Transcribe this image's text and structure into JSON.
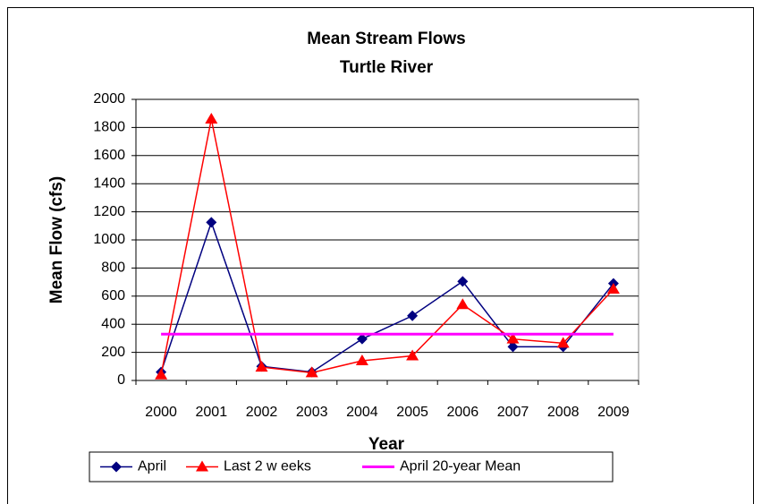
{
  "chart_data": {
    "type": "line",
    "title": "Mean Stream Flows",
    "subtitle": "Turtle River",
    "x_label": "Year",
    "y_label": "Mean Flow (cfs)",
    "categories": [
      "2000",
      "2001",
      "2002",
      "2003",
      "2004",
      "2005",
      "2006",
      "2007",
      "2008",
      "2009"
    ],
    "series": [
      {
        "name": "April",
        "color": "#000080",
        "marker": "diamond",
        "values": [
          60,
          1125,
          100,
          60,
          295,
          460,
          705,
          240,
          240,
          690
        ]
      },
      {
        "name": "Last 2 w eeks",
        "color": "#ff0000",
        "marker": "triangle",
        "values": [
          40,
          1860,
          95,
          55,
          140,
          175,
          540,
          295,
          265,
          650
        ]
      },
      {
        "name": "April 20-year Mean",
        "color": "#ff00ff",
        "marker": "none",
        "values": [
          330,
          330,
          330,
          330,
          330,
          330,
          330,
          330,
          330,
          330
        ]
      }
    ],
    "ylim": [
      0,
      2000
    ],
    "yticks": [
      0,
      200,
      400,
      600,
      800,
      1000,
      1200,
      1400,
      1600,
      1800,
      2000
    ],
    "grid": true,
    "legend": "bottom"
  }
}
